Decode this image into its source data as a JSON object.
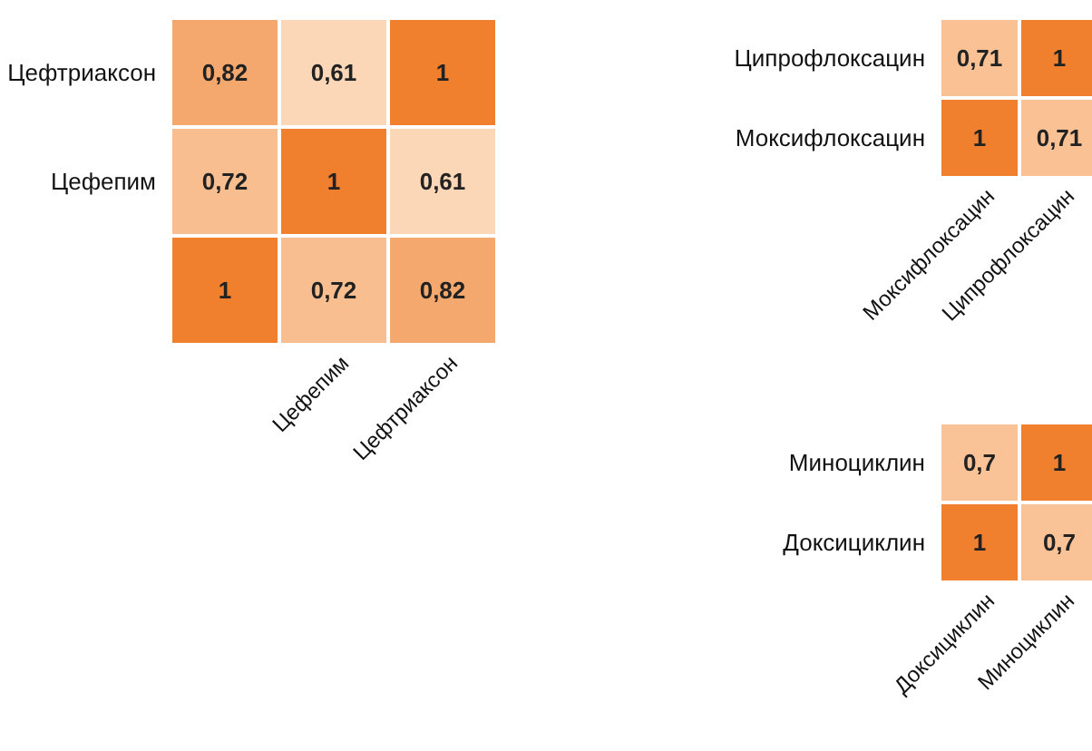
{
  "chart_data": [
    {
      "type": "heatmap",
      "categories": [
        null,
        "Цефепим",
        "Цефтриаксон"
      ],
      "y_categories": [
        "Цефтриаксон",
        "Цефепим",
        null
      ],
      "cells": [
        [
          0.82,
          0.61,
          1
        ],
        [
          0.72,
          1,
          0.61
        ],
        [
          1,
          0.72,
          0.82
        ]
      ],
      "cell_labels": [
        [
          "0,82",
          "0,61",
          "1"
        ],
        [
          "0,72",
          "1",
          "0,61"
        ],
        [
          "1",
          "0,72",
          "0,82"
        ]
      ],
      "data_labels": true
    },
    {
      "type": "heatmap",
      "categories": [
        "Моксифлоксацин",
        "Ципрофлоксацин"
      ],
      "y_categories": [
        "Ципрофлоксацин",
        "Моксифлоксацин"
      ],
      "cells": [
        [
          0.71,
          1
        ],
        [
          1,
          0.71
        ]
      ],
      "cell_labels": [
        [
          "0,71",
          "1"
        ],
        [
          "1",
          "0,71"
        ]
      ],
      "data_labels": true
    },
    {
      "type": "heatmap",
      "categories": [
        "Доксициклин",
        "Миноциклин"
      ],
      "y_categories": [
        "Миноциклин",
        "Доксициклин"
      ],
      "cells": [
        [
          0.7,
          1
        ],
        [
          1,
          0.7
        ]
      ],
      "cell_labels": [
        [
          "0,7",
          "1"
        ],
        [
          "1",
          "0,7"
        ]
      ],
      "data_labels": true
    }
  ]
}
